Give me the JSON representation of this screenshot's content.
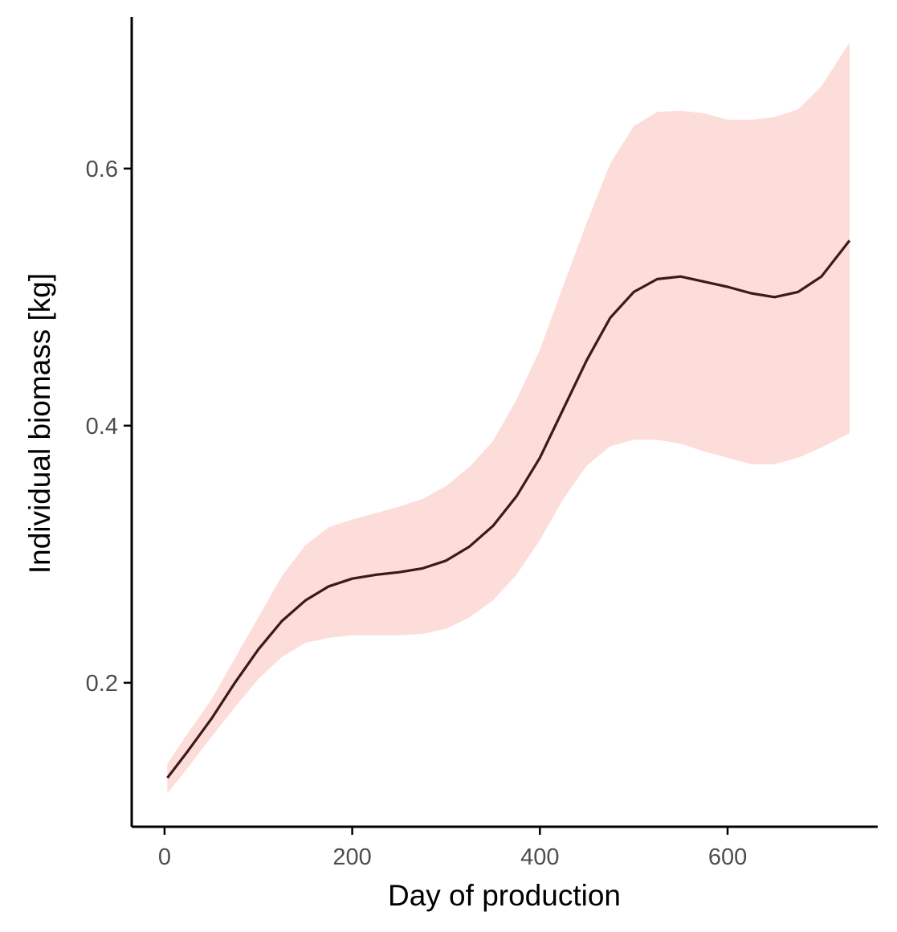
{
  "chart_data": {
    "type": "line",
    "title": "",
    "xlabel": "Day of production",
    "ylabel": "Individual biomass [kg]",
    "xlim": [
      -35,
      760
    ],
    "ylim": [
      0.088,
      0.718
    ],
    "x_ticks": [
      0,
      200,
      400,
      600
    ],
    "x_tick_labels": [
      "0",
      "200",
      "400",
      "600"
    ],
    "y_ticks": [
      0.2,
      0.4,
      0.6
    ],
    "y_tick_labels": [
      "0.2",
      "0.4",
      "0.6"
    ],
    "grid": false,
    "legend": "none",
    "colors": {
      "line": "#3b1a1a",
      "ribbon": "#fcddd9"
    },
    "series": [
      {
        "x": [
          3,
          25,
          50,
          75,
          100,
          125,
          150,
          175,
          200,
          225,
          250,
          275,
          300,
          325,
          350,
          375,
          400,
          425,
          450,
          475,
          500,
          525,
          550,
          575,
          600,
          625,
          650,
          675,
          700,
          730
        ],
        "y": [
          0.126,
          0.147,
          0.172,
          0.2,
          0.226,
          0.248,
          0.264,
          0.275,
          0.281,
          0.284,
          0.286,
          0.289,
          0.295,
          0.306,
          0.322,
          0.345,
          0.375,
          0.413,
          0.451,
          0.484,
          0.504,
          0.514,
          0.516,
          0.512,
          0.508,
          0.503,
          0.5,
          0.504,
          0.516,
          0.544
        ],
        "lower": [
          0.114,
          0.134,
          0.158,
          0.181,
          0.203,
          0.22,
          0.231,
          0.235,
          0.237,
          0.237,
          0.237,
          0.238,
          0.242,
          0.251,
          0.264,
          0.284,
          0.311,
          0.343,
          0.369,
          0.384,
          0.389,
          0.389,
          0.386,
          0.38,
          0.375,
          0.37,
          0.37,
          0.375,
          0.383,
          0.394
        ],
        "upper": [
          0.137,
          0.161,
          0.187,
          0.219,
          0.251,
          0.283,
          0.307,
          0.321,
          0.327,
          0.332,
          0.337,
          0.343,
          0.353,
          0.368,
          0.388,
          0.42,
          0.459,
          0.509,
          0.558,
          0.604,
          0.633,
          0.644,
          0.645,
          0.643,
          0.638,
          0.638,
          0.64,
          0.646,
          0.664,
          0.698
        ]
      }
    ]
  }
}
